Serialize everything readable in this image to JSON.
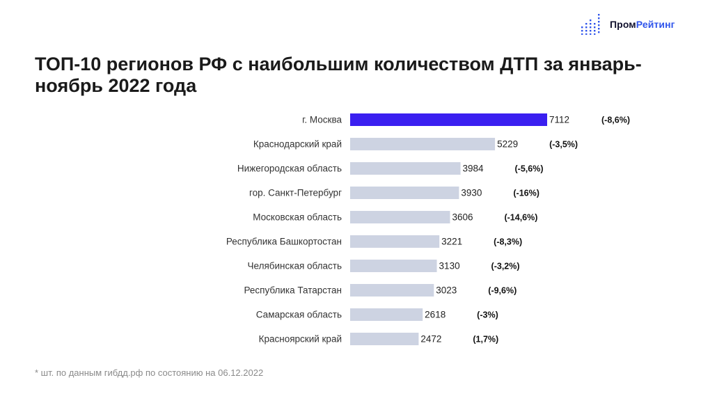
{
  "logo": {
    "name_part1": "Пром",
    "name_part2": "Рейтинг",
    "accent_color": "#2f54eb",
    "dark_color": "#12122e",
    "icon": "bar-dots-logo-icon"
  },
  "title": "ТОП-10 регионов РФ с наибольшим количеством ДТП за январь-ноябрь 2022 года",
  "footnote": "* шт. по данным гибдд.рф по состоянию на 06.12.2022",
  "chart_data": {
    "type": "bar",
    "orientation": "horizontal",
    "title": "ТОП-10 регионов РФ с наибольшим количеством ДТП за январь-ноябрь 2022 года",
    "xlabel": "",
    "ylabel": "",
    "categories": [
      "г. Москва",
      "Краснодарский край",
      "Нижегородская область",
      "гор. Санкт-Петербург",
      "Московская область",
      "Республика Башкортостан",
      "Челябинская область",
      "Республика Татарстан",
      "Самарская область",
      "Красноярский край"
    ],
    "values": [
      7112,
      5229,
      3984,
      3930,
      3606,
      3221,
      3130,
      3023,
      2618,
      2472
    ],
    "changes": [
      "(-8,6%)",
      "(-3,5%)",
      "(-5,6%)",
      "(-16%)",
      "(-14,6%)",
      "(-8,3%)",
      "(-3,2%)",
      "(-9,6%)",
      "(-3%)",
      "(1,7%)"
    ],
    "highlight_index": 0,
    "highlight_color": "#3a1ff0",
    "bar_color": "#cdd3e2",
    "xlim": [
      0,
      7112
    ],
    "grid": false
  }
}
